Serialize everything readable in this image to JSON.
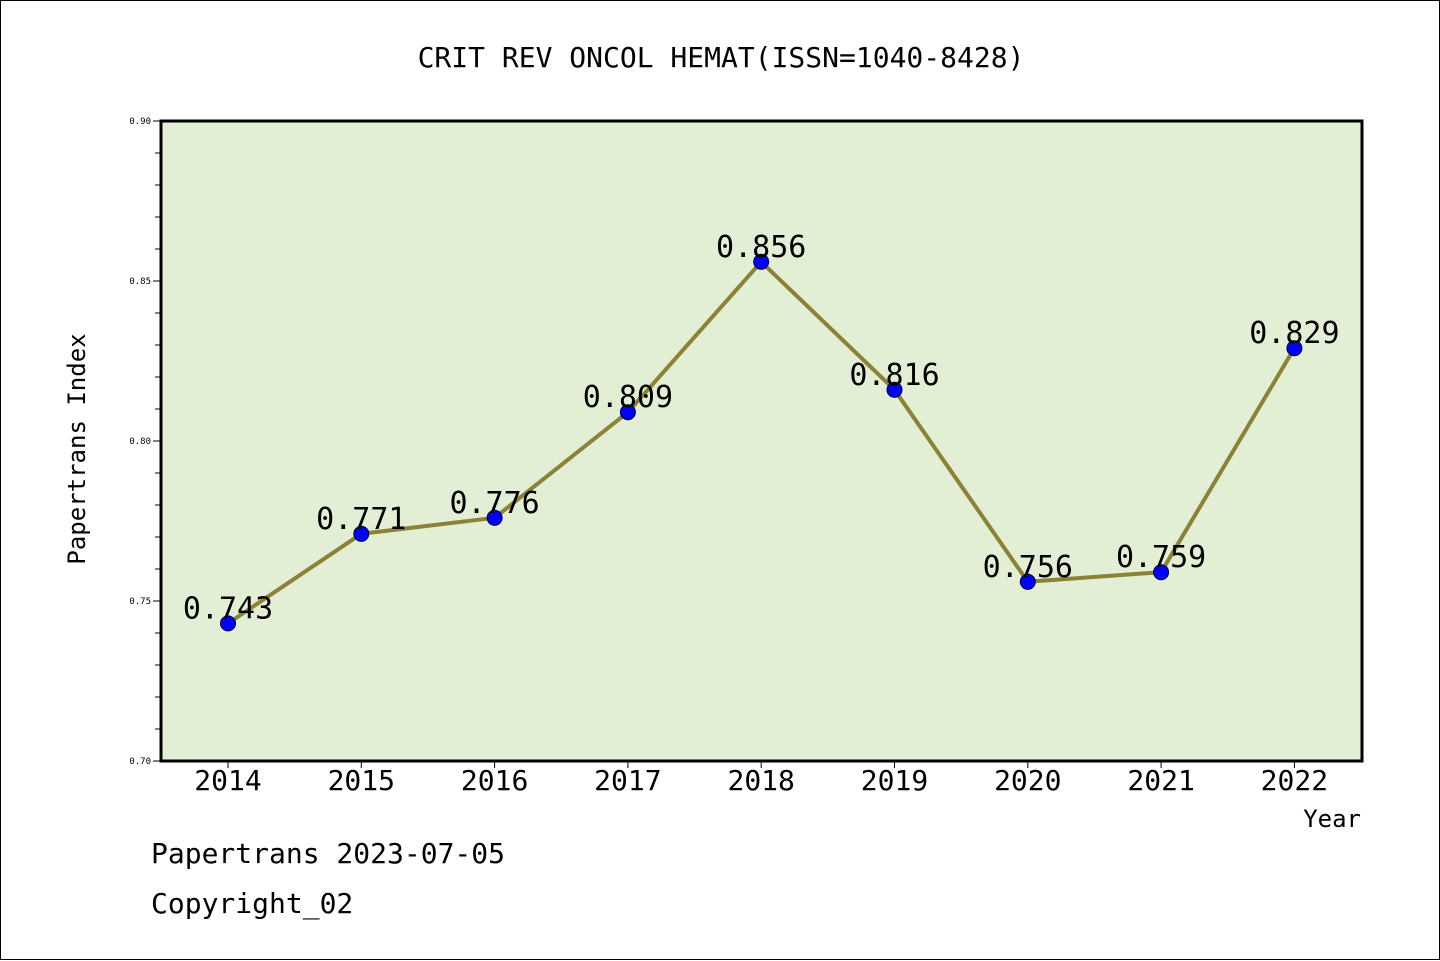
{
  "chart_data": {
    "type": "line",
    "title": "CRIT REV ONCOL HEMAT(ISSN=1040-8428)",
    "xlabel": "Year",
    "ylabel": "Papertrans Index",
    "categories": [
      "2014",
      "2015",
      "2016",
      "2017",
      "2018",
      "2019",
      "2020",
      "2021",
      "2022"
    ],
    "series": [
      {
        "values": [
          0.743,
          0.771,
          0.776,
          0.809,
          0.856,
          0.816,
          0.756,
          0.759,
          0.829
        ],
        "data_labels": [
          "0.743",
          "0.771",
          "0.776",
          "0.809",
          "0.856",
          "0.816",
          "0.756",
          "0.759",
          "0.829"
        ]
      }
    ],
    "ylim": [
      0.7,
      0.9
    ],
    "yticks": [
      "0.70",
      "0.75",
      "0.80",
      "0.85",
      "0.90"
    ],
    "grid": false,
    "legend": "none",
    "colors": {
      "plot_background": "#e2efd5",
      "line": "#8b8236",
      "marker": "#0000ff",
      "axes": "#000000"
    }
  },
  "footer": {
    "line1": "Papertrans 2023-07-05",
    "line2": "Copyright_02"
  }
}
